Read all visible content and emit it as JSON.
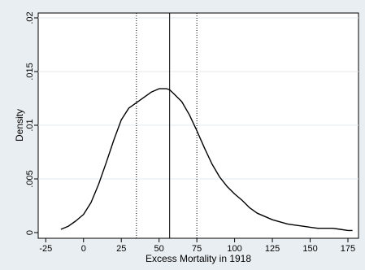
{
  "chart_data": {
    "type": "line",
    "xlabel": "Excess Mortality in 1918",
    "ylabel": "Density",
    "xlim": [
      -30,
      182
    ],
    "ylim": [
      0,
      0.02
    ],
    "x_ticks": [
      -25,
      0,
      25,
      50,
      75,
      100,
      125,
      150,
      175
    ],
    "y_ticks": [
      0,
      0.005,
      0.01,
      0.015,
      0.02
    ],
    "x_tick_labels": [
      "-25",
      "0",
      "25",
      "50",
      "75",
      "100",
      "125",
      "150",
      "175"
    ],
    "y_tick_labels": [
      "0",
      ".005",
      ".01",
      ".015",
      ".02"
    ],
    "grid": "horizontal",
    "reference_lines": [
      {
        "x": 35,
        "style": "dotted"
      },
      {
        "x": 57,
        "style": "solid"
      },
      {
        "x": 75,
        "style": "dotted"
      }
    ],
    "series": [
      {
        "x": [
          -15,
          -10,
          -5,
          0,
          5,
          10,
          15,
          20,
          25,
          30,
          35,
          40,
          45,
          50,
          55,
          57,
          60,
          65,
          70,
          75,
          80,
          85,
          90,
          95,
          100,
          105,
          110,
          115,
          120,
          125,
          130,
          135,
          140,
          145,
          150,
          155,
          160,
          165,
          170,
          175,
          178
        ],
        "values": [
          0.0003,
          0.0006,
          0.0011,
          0.0017,
          0.0028,
          0.0045,
          0.0065,
          0.0086,
          0.0105,
          0.0116,
          0.0121,
          0.0126,
          0.0131,
          0.0134,
          0.0134,
          0.0133,
          0.0129,
          0.0122,
          0.011,
          0.0095,
          0.0079,
          0.0064,
          0.0052,
          0.0043,
          0.0036,
          0.003,
          0.0023,
          0.0018,
          0.0015,
          0.0012,
          0.001,
          0.0008,
          0.0007,
          0.0006,
          0.0005,
          0.0004,
          0.0004,
          0.0004,
          0.0003,
          0.0002,
          0.0002
        ]
      }
    ]
  }
}
